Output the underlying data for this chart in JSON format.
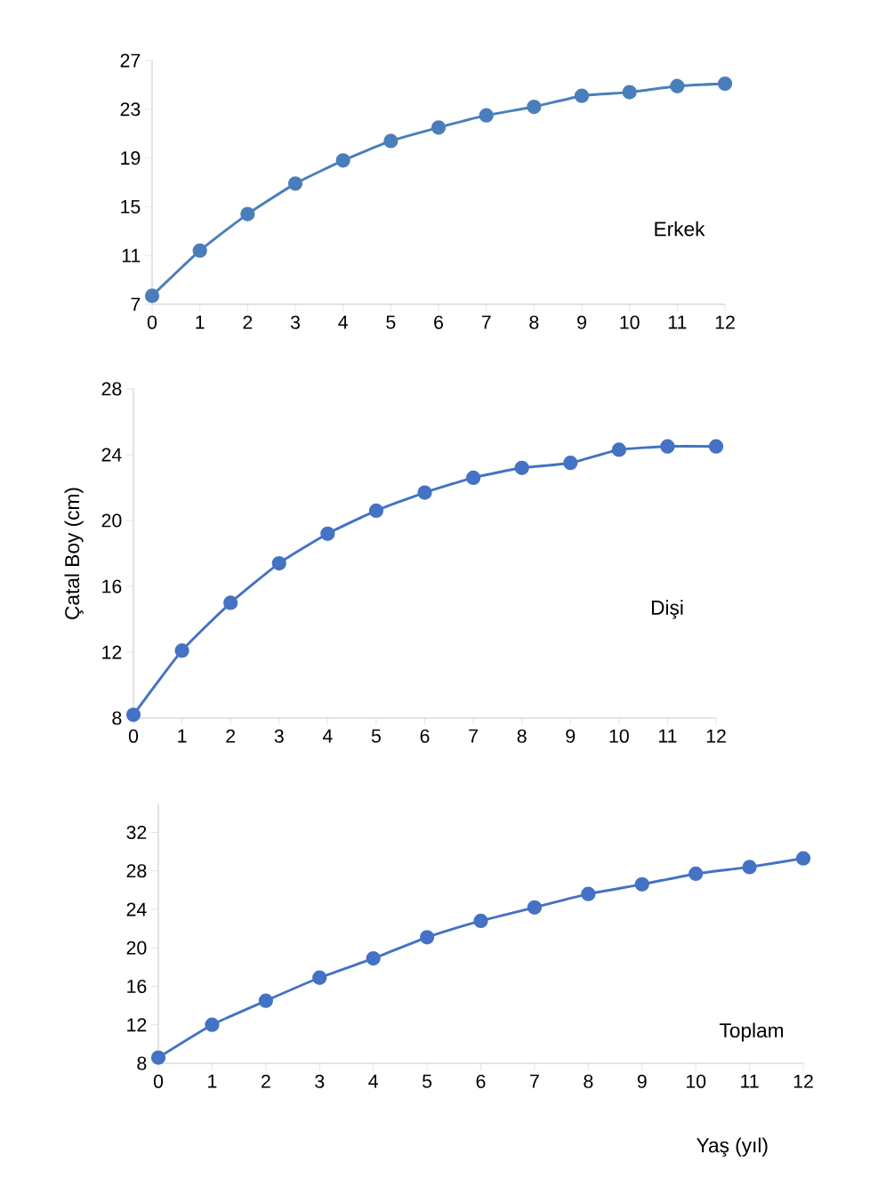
{
  "chart_data": [
    {
      "type": "line",
      "x": [
        0,
        1,
        2,
        3,
        4,
        5,
        6,
        7,
        8,
        9,
        10,
        11,
        12
      ],
      "xlim": [
        0,
        12
      ],
      "xticks": [
        0,
        1,
        2,
        3,
        4,
        5,
        6,
        7,
        8,
        9,
        10,
        11,
        12
      ],
      "ylim": [
        7,
        27
      ],
      "yticks": [
        7,
        11,
        15,
        19,
        23,
        27
      ],
      "marker": "circle",
      "line_style": "solid",
      "grid": false,
      "annotations": [
        "Erkek"
      ],
      "series": [
        {
          "color": "#4a7ebb",
          "values": [
            7.7,
            11.4,
            14.4,
            16.9,
            18.8,
            20.4,
            21.5,
            22.5,
            23.2,
            24.1,
            24.4,
            24.9,
            25.1
          ]
        }
      ]
    },
    {
      "type": "line",
      "ylabel": "Çatal Boy (cm)",
      "x": [
        0,
        1,
        2,
        3,
        4,
        5,
        6,
        7,
        8,
        9,
        10,
        11,
        12
      ],
      "xlim": [
        0,
        12
      ],
      "xticks": [
        0,
        1,
        2,
        3,
        4,
        5,
        6,
        7,
        8,
        9,
        10,
        11,
        12
      ],
      "ylim": [
        8,
        28
      ],
      "yticks": [
        8,
        12,
        16,
        20,
        24,
        28
      ],
      "marker": "circle",
      "line_style": "solid",
      "grid": false,
      "annotations": [
        "Dişi"
      ],
      "series": [
        {
          "color": "#4472c4",
          "values": [
            8.2,
            12.1,
            15.0,
            17.4,
            19.2,
            20.6,
            21.7,
            22.6,
            23.2,
            23.5,
            24.3,
            24.5,
            24.5
          ]
        }
      ]
    },
    {
      "type": "line",
      "xlabel": "Yaş (yıl)",
      "x": [
        0,
        1,
        2,
        3,
        4,
        5,
        6,
        7,
        8,
        9,
        10,
        11,
        12
      ],
      "xlim": [
        0,
        12
      ],
      "xticks": [
        0,
        1,
        2,
        3,
        4,
        5,
        6,
        7,
        8,
        9,
        10,
        11,
        12
      ],
      "ylim": [
        8,
        35
      ],
      "yticks": [
        8,
        12,
        16,
        20,
        24,
        28,
        32
      ],
      "marker": "circle",
      "line_style": "solid",
      "grid": false,
      "annotations": [
        "Toplam"
      ],
      "series": [
        {
          "color": "#4472c4",
          "values": [
            8.6,
            12.0,
            14.5,
            16.9,
            18.9,
            21.1,
            22.8,
            24.2,
            25.6,
            26.6,
            27.7,
            28.4,
            29.3
          ]
        }
      ]
    }
  ]
}
